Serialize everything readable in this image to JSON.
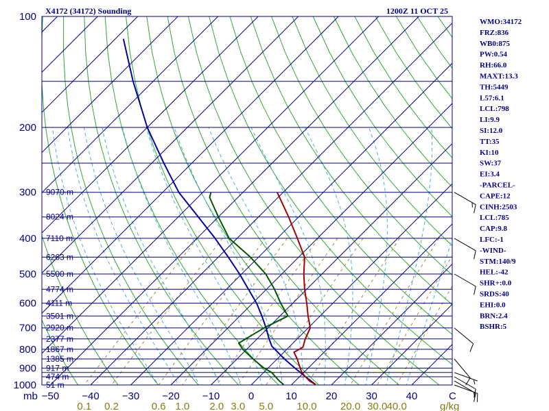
{
  "header": {
    "station": "X4172 (34172) Sounding",
    "valid_time": "1200Z 11 OCT 25"
  },
  "chart_data": {
    "type": "skew-t log-p",
    "pressure_unit": "mb",
    "temperature_unit": "C",
    "mixing_ratio_unit": "g/kg",
    "pressure_ticks": [
      100,
      200,
      300,
      400,
      500,
      600,
      700,
      800,
      900,
      1000
    ],
    "pressure_lines": [
      100,
      150,
      200,
      250,
      300,
      350,
      400,
      450,
      500,
      550,
      600,
      650,
      700,
      750,
      800,
      850,
      900,
      925,
      950,
      1000
    ],
    "temperature_ticks": [
      -50,
      -40,
      -30,
      -20,
      -10,
      0,
      10,
      20,
      30,
      40
    ],
    "mixing_ratio_ticks": [
      "0.1",
      "0.2",
      "0.6",
      "1.0",
      "2.0",
      "3.0",
      "5.0",
      "10.0",
      "20.0",
      "30.0",
      "40.0"
    ],
    "mixing_ratio_values": [
      0.1,
      0.2,
      0.6,
      1.0,
      2.0,
      3.0,
      5.0,
      10.0,
      20.0,
      30.0,
      40.0
    ],
    "height_labels": [
      {
        "p": 300,
        "label": "9070 m"
      },
      {
        "p": 350,
        "label": "8024 m"
      },
      {
        "p": 400,
        "label": "7110 m"
      },
      {
        "p": 450,
        "label": "6263 m"
      },
      {
        "p": 500,
        "label": "5500 m"
      },
      {
        "p": 550,
        "label": "4774 m"
      },
      {
        "p": 600,
        "label": "4111 m"
      },
      {
        "p": 650,
        "label": "3501 m"
      },
      {
        "p": 700,
        "label": "2920 m"
      },
      {
        "p": 750,
        "label": "2377 m"
      },
      {
        "p": 800,
        "label": "1867 m"
      },
      {
        "p": 850,
        "label": "1385 m"
      },
      {
        "p": 900,
        "label": "917 m"
      },
      {
        "p": 950,
        "label": "474 m"
      },
      {
        "p": 1000,
        "label": "51 m"
      }
    ],
    "temperature_profile": [
      {
        "p": 998,
        "t": 16.0
      },
      {
        "p": 975,
        "t": 13.5
      },
      {
        "p": 950,
        "t": 11.5
      },
      {
        "p": 925,
        "t": 9.5
      },
      {
        "p": 900,
        "t": 8.0
      },
      {
        "p": 850,
        "t": 5.0
      },
      {
        "p": 815,
        "t": 2.5
      },
      {
        "p": 790,
        "t": 3.5
      },
      {
        "p": 750,
        "t": 2.0
      },
      {
        "p": 700,
        "t": 0.5
      },
      {
        "p": 650,
        "t": -3.0
      },
      {
        "p": 600,
        "t": -6.5
      },
      {
        "p": 550,
        "t": -10.5
      },
      {
        "p": 500,
        "t": -14.5
      },
      {
        "p": 450,
        "t": -18.5
      },
      {
        "p": 400,
        "t": -25.0
      },
      {
        "p": 350,
        "t": -32.5
      },
      {
        "p": 300,
        "t": -41.5
      }
    ],
    "dewpoint_profile": [
      {
        "p": 998,
        "t": 8.0
      },
      {
        "p": 975,
        "t": 6.0
      },
      {
        "p": 950,
        "t": 4.0
      },
      {
        "p": 925,
        "t": 2.0
      },
      {
        "p": 900,
        "t": -1.0
      },
      {
        "p": 850,
        "t": -6.0
      },
      {
        "p": 800,
        "t": -11.0
      },
      {
        "p": 770,
        "t": -13.5
      },
      {
        "p": 700,
        "t": -11.0
      },
      {
        "p": 650,
        "t": -8.0
      },
      {
        "p": 600,
        "t": -13.0
      },
      {
        "p": 550,
        "t": -18.0
      },
      {
        "p": 500,
        "t": -24.0
      },
      {
        "p": 450,
        "t": -32.0
      },
      {
        "p": 400,
        "t": -42.0
      },
      {
        "p": 350,
        "t": -50.0
      },
      {
        "p": 310,
        "t": -57.0
      },
      {
        "p": 300,
        "t": -58.0
      }
    ],
    "parcel_profile": [
      {
        "p": 998,
        "t": 16.0
      },
      {
        "p": 950,
        "t": 11.5
      },
      {
        "p": 900,
        "t": 6.7
      },
      {
        "p": 850,
        "t": 1.8
      },
      {
        "p": 785,
        "t": -4.5
      },
      {
        "p": 750,
        "t": -7.0
      },
      {
        "p": 700,
        "t": -10.5
      },
      {
        "p": 650,
        "t": -14.5
      },
      {
        "p": 600,
        "t": -19.0
      },
      {
        "p": 550,
        "t": -24.5
      },
      {
        "p": 500,
        "t": -30.5
      },
      {
        "p": 450,
        "t": -37.5
      },
      {
        "p": 400,
        "t": -45.5
      },
      {
        "p": 350,
        "t": -55.0
      },
      {
        "p": 300,
        "t": -66.0
      },
      {
        "p": 250,
        "t": -77.0
      },
      {
        "p": 200,
        "t": -90.0
      },
      {
        "p": 150,
        "t": -105.0
      },
      {
        "p": 115,
        "t": -118.0
      }
    ],
    "wind_barbs": [
      {
        "p": 300,
        "dir": 120,
        "kt": 15
      },
      {
        "p": 400,
        "dir": 120,
        "kt": 10
      },
      {
        "p": 500,
        "dir": 120,
        "kt": 10
      },
      {
        "p": 700,
        "dir": 130,
        "kt": 10
      },
      {
        "p": 850,
        "dir": 140,
        "kt": 10
      },
      {
        "p": 925,
        "dir": 110,
        "kt": 5
      },
      {
        "p": 950,
        "dir": 120,
        "kt": 10
      },
      {
        "p": 975,
        "dir": 120,
        "kt": 10
      },
      {
        "p": 1000,
        "dir": 110,
        "kt": 15
      }
    ],
    "xlabel_left": "mb",
    "xlabel_right": "C",
    "mixing_unit_label": "g/kg"
  },
  "indices": [
    "WMO:34172",
    "FRZ:836",
    "WB0:875",
    "PW:0.54",
    "RH:66.0",
    "MAXT:13.3",
    "TH:5449",
    "L57:6.1",
    "LCL:798",
    "LI:9.9",
    "SI:12.0",
    "TT:35",
    "KI:10",
    "SW:37",
    "EI:3.4",
    "-PARCEL-",
    "CAPE:12",
    "CINH:2503",
    "LCL:785",
    "CAP:9.8",
    "LFC:-1",
    "-WIND-",
    "STM:140/9",
    "HEL:-42",
    "SHR+:0.0",
    "SRDS:40",
    "EHI:0.0",
    "BRN:2.4",
    "BSHR:5"
  ],
  "colors": {
    "isobar": "#000080",
    "isotherm": "#000080",
    "dry_adiabat": "#2ea82e",
    "moist_adiabat": "#4ab0d8",
    "mixing_ratio": "#9a8a3a",
    "temperature": "#a00000",
    "dewpoint": "#005500",
    "parcel": "#0000a0",
    "wind": "#000000",
    "text": "#000080",
    "mix_text": "#8a7a10"
  }
}
